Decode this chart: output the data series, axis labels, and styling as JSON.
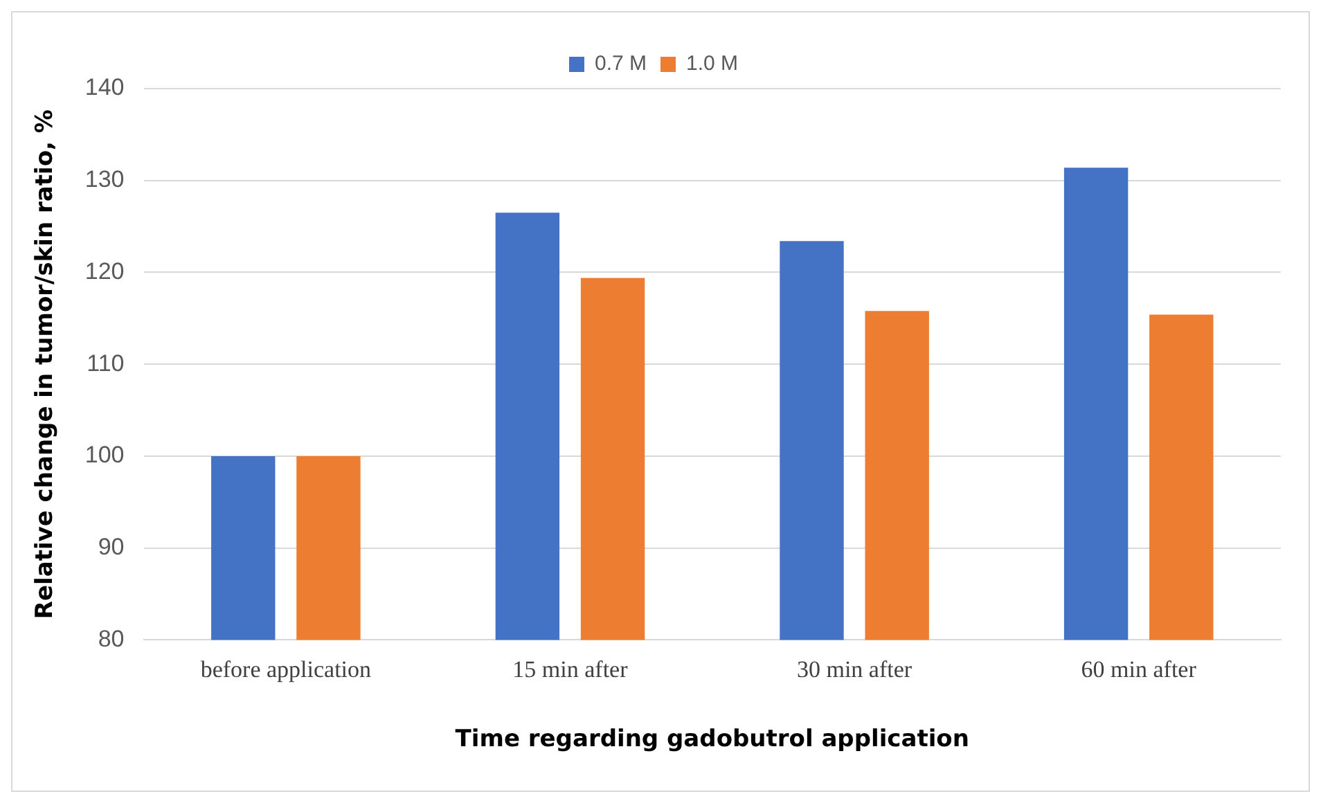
{
  "chart_data": {
    "type": "bar",
    "xlabel": "Time regarding gadobutrol application",
    "ylabel": "Relative change in tumor/skin ratio, %",
    "categories": [
      "before application",
      "15 min after",
      "30 min after",
      "60 min after"
    ],
    "series": [
      {
        "name": "0.7 M",
        "color": "#4472c4",
        "values": [
          100,
          126.5,
          123.4,
          131.4
        ]
      },
      {
        "name": "1.0 M",
        "color": "#ed7d31",
        "values": [
          100,
          119.4,
          115.8,
          115.4
        ]
      }
    ],
    "ylim": [
      80,
      140
    ],
    "yticks": [
      80,
      90,
      100,
      110,
      120,
      130,
      140
    ],
    "grid": "y",
    "legend": "top"
  }
}
